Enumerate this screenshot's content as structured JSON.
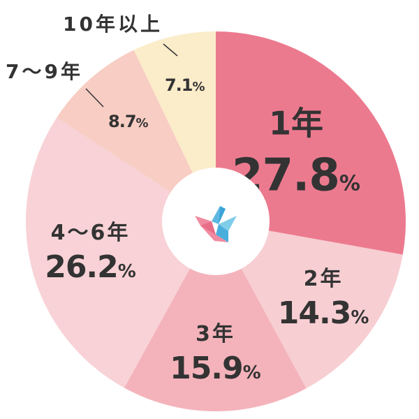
{
  "chart_data": {
    "type": "pie",
    "categories": [
      "1年",
      "2年",
      "3年",
      "4～6年",
      "7～9年",
      "10年以上"
    ],
    "values": [
      27.8,
      14.3,
      15.9,
      26.2,
      8.7,
      7.1
    ],
    "labels": [
      "1年",
      "2年",
      "3年",
      "4～6年",
      "7～9年",
      "10年以上"
    ],
    "value_labels": [
      "27.8",
      "14.3",
      "15.9",
      "26.2",
      "8.7",
      "7.1"
    ],
    "unit": "%",
    "colors": [
      "#ec7a8f",
      "#f7ced2",
      "#f4b3bb",
      "#f8d2d6",
      "#f8cdc3",
      "#fbecca"
    ],
    "title": "",
    "xlabel": "",
    "ylabel": "",
    "legend": "none",
    "center_icon": "origami-bird-icon"
  }
}
